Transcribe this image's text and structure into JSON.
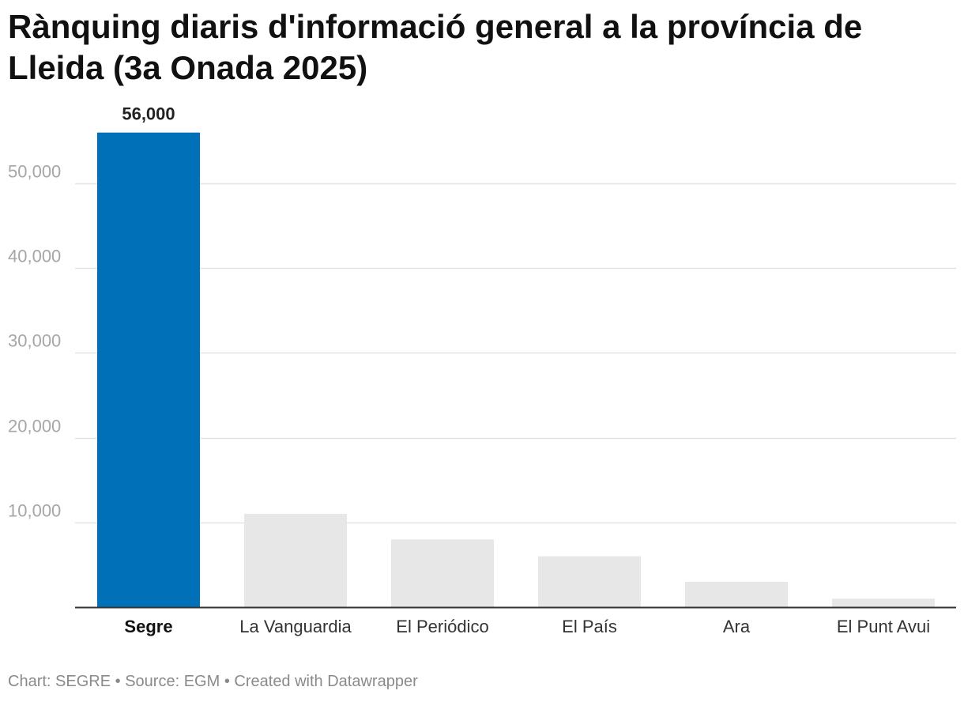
{
  "chart_data": {
    "type": "bar",
    "title": "Rànquing diaris d'informació general a la província de Lleida (3a Onada 2025)",
    "categories": [
      "Segre",
      "La Vanguardia",
      "El Periódico",
      "El País",
      "Ara",
      "El Punt Avui"
    ],
    "values": [
      56000,
      11000,
      8000,
      6000,
      3000,
      1000
    ],
    "highlight_index": 0,
    "highlight_value_label": "56,000",
    "yticks": [
      10000,
      20000,
      30000,
      40000,
      50000
    ],
    "ytick_labels": [
      "10,000",
      "20,000",
      "30,000",
      "40,000",
      "50,000"
    ],
    "ylim": [
      0,
      60000
    ],
    "grid": true,
    "xlabel": "",
    "ylabel": "",
    "colors": {
      "highlight": "#0070b8",
      "other": "#e7e7e7",
      "grid": "#e2e2e2",
      "axis": "#333333"
    }
  },
  "footer": {
    "chart_label": "Chart:",
    "chart_author": "SEGRE",
    "separator": "•",
    "source_label": "Source:",
    "source": "EGM",
    "created_with": "Created with Datawrapper"
  }
}
